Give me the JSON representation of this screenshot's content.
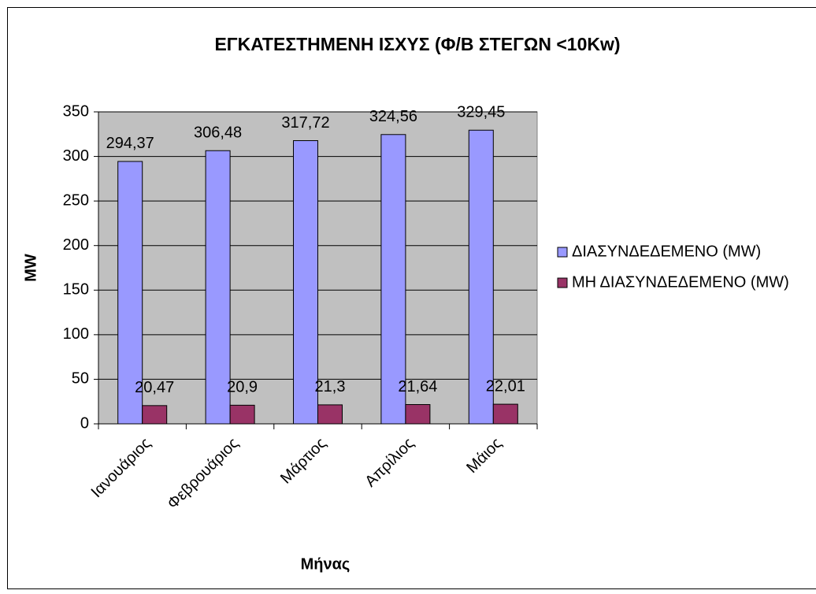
{
  "chart_data": {
    "type": "bar",
    "title": "ΕΓΚΑΤΕΣΤΗΜΕΝΗ ΙΣΧΥΣ (Φ/Β ΣΤΕΓΩΝ <10Kw)",
    "x_label": "Μήνας",
    "y_label": "MW",
    "categories": [
      "Ιανουάριος",
      "Φεβρουάριος",
      "Μάρτιος",
      "Απρίλιος",
      "Μάιος"
    ],
    "series": [
      {
        "name": "ΔΙΑΣΥΝΔΕΔΕΜΕΝΟ (MW)",
        "color": "#9999ff",
        "values": [
          294.37,
          306.48,
          317.72,
          324.56,
          329.45
        ],
        "value_labels": [
          "294,37",
          "306,48",
          "317,72",
          "324,56",
          "329,45"
        ]
      },
      {
        "name": "ΜΗ ΔΙΑΣΥΝΔΕΔΕΜΕΝΟ (MW)",
        "color": "#993366",
        "values": [
          20.47,
          20.9,
          21.3,
          21.64,
          22.01
        ],
        "value_labels": [
          "20,47",
          "20,9",
          "21,3",
          "21,64",
          "22,01"
        ]
      }
    ],
    "ylim": [
      0,
      350
    ],
    "yticks": [
      0,
      50,
      100,
      150,
      200,
      250,
      300,
      350
    ],
    "grid": true,
    "legend": "right",
    "plot_background": "#c0c0c0"
  }
}
